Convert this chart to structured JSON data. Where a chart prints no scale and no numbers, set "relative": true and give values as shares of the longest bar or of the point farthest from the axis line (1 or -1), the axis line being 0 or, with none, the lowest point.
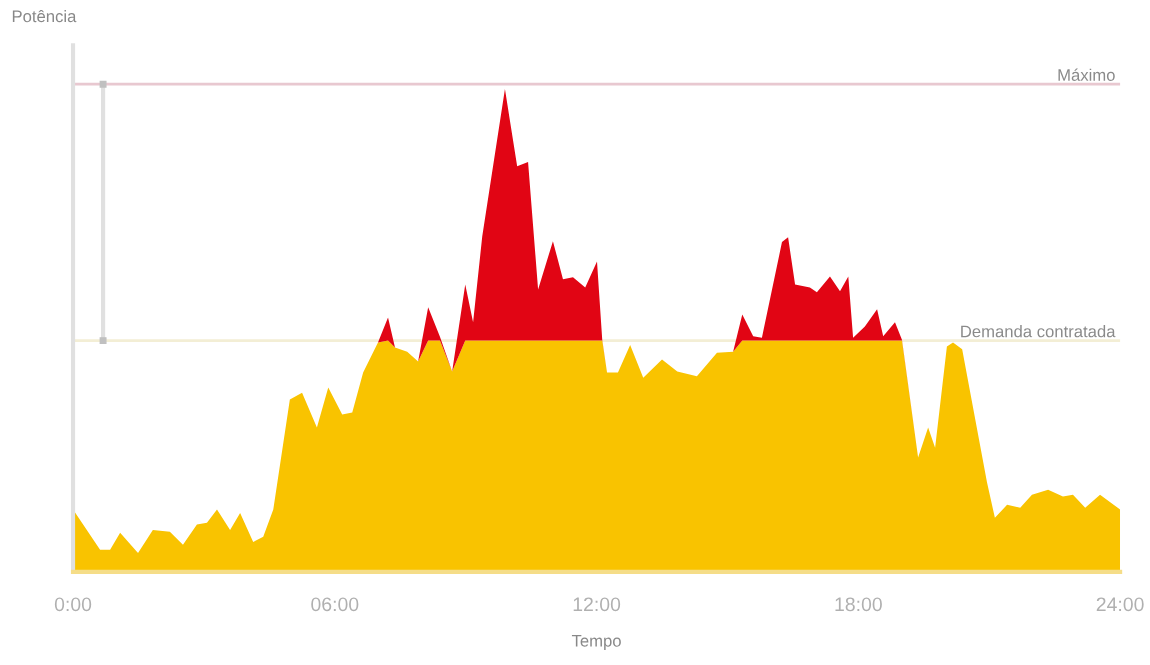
{
  "chart_data": {
    "type": "area",
    "stacked": true,
    "relative": true,
    "tick_labels": "x",
    "xlabel": "Tempo",
    "ylabel": "Potência",
    "x": [
      0,
      0.62,
      0.85,
      1.08,
      1.49,
      1.83,
      2.22,
      2.52,
      2.84,
      3.07,
      3.3,
      3.6,
      3.83,
      4.13,
      4.36,
      4.59,
      4.97,
      5.25,
      5.59,
      5.85,
      6.17,
      6.4,
      6.65,
      6.99,
      7.22,
      7.38,
      7.66,
      7.91,
      8.14,
      8.41,
      8.69,
      8.99,
      9.17,
      9.38,
      9.9,
      10.18,
      10.43,
      10.66,
      11.0,
      11.23,
      11.46,
      11.74,
      12.01,
      12.13,
      12.24,
      12.49,
      12.77,
      13.07,
      13.5,
      13.85,
      14.3,
      14.76,
      15.13,
      15.34,
      15.59,
      15.79,
      16.25,
      16.39,
      16.55,
      16.89,
      17.05,
      17.35,
      17.58,
      17.77,
      17.88,
      18.15,
      18.43,
      18.57,
      18.84,
      19.0,
      19.37,
      19.6,
      19.76,
      20.03,
      20.17,
      20.38,
      20.95,
      21.13,
      21.41,
      21.71,
      21.98,
      22.35,
      22.69,
      22.92,
      23.2,
      23.54,
      24
    ],
    "series": [
      {
        "color": "#f9c300",
        "values": [
          0.129,
          0.046,
          0.046,
          0.081,
          0.039,
          0.087,
          0.083,
          0.056,
          0.098,
          0.102,
          0.129,
          0.087,
          0.122,
          0.062,
          0.073,
          0.129,
          0.357,
          0.371,
          0.299,
          0.382,
          0.326,
          0.33,
          0.413,
          0.475,
          0.479,
          0.465,
          0.456,
          0.436,
          0.479,
          0.479,
          0.415,
          0.479,
          0.479,
          0.479,
          0.479,
          0.479,
          0.479,
          0.479,
          0.479,
          0.479,
          0.479,
          0.479,
          0.479,
          0.479,
          0.413,
          0.413,
          0.47,
          0.402,
          0.44,
          0.415,
          0.405,
          0.454,
          0.456,
          0.479,
          0.479,
          0.479,
          0.479,
          0.479,
          0.479,
          0.479,
          0.479,
          0.479,
          0.479,
          0.479,
          0.479,
          0.479,
          0.479,
          0.479,
          0.479,
          0.479,
          0.237,
          0.299,
          0.257,
          0.467,
          0.475,
          0.461,
          0.185,
          0.112,
          0.139,
          0.133,
          0.16,
          0.17,
          0.156,
          0.16,
          0.133,
          0.16,
          0.129
        ]
      },
      {
        "color": "#e10514",
        "values": [
          0,
          0,
          0,
          0,
          0,
          0,
          0,
          0,
          0,
          0,
          0,
          0,
          0,
          0,
          0,
          0,
          0,
          0,
          0,
          0,
          0,
          0,
          0,
          0,
          0.048,
          0,
          0,
          0,
          0.069,
          0.008,
          0,
          0.116,
          0.038,
          0.216,
          0.521,
          0.361,
          0.37,
          0.106,
          0.206,
          0.127,
          0.131,
          0.11,
          0.164,
          0.002,
          0,
          0,
          0,
          0,
          0,
          0,
          0,
          0,
          0,
          0.054,
          0.009,
          0.006,
          0.204,
          0.214,
          0.116,
          0.11,
          0.1,
          0.133,
          0.102,
          0.133,
          0.006,
          0.029,
          0.065,
          0.009,
          0.038,
          0.002,
          0,
          0,
          0,
          0,
          0,
          0,
          0,
          0,
          0,
          0,
          0,
          0,
          0,
          0,
          0,
          0,
          0
        ]
      }
    ],
    "xlim": [
      0,
      24
    ],
    "xticks": [
      {
        "value": 0,
        "label": "0:00"
      },
      {
        "value": 6,
        "label": "06:00"
      },
      {
        "value": 12,
        "label": "12:00"
      },
      {
        "value": 18,
        "label": "18:00"
      },
      {
        "value": 24,
        "label": "24:00"
      }
    ],
    "ref_lines": [
      {
        "axis": "y",
        "value": 1.01,
        "label": "Máximo",
        "color": "#e8c8d0"
      },
      {
        "axis": "y",
        "value": 0.479,
        "label": "Demanda contratada",
        "color": "#f3eed5"
      }
    ]
  }
}
